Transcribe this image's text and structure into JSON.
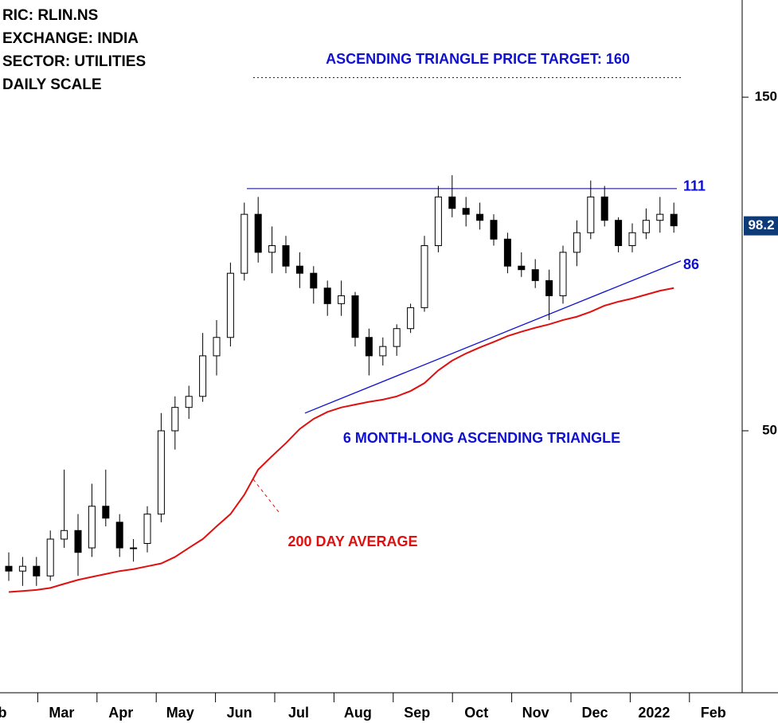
{
  "chart_data": {
    "type": "candlestick",
    "header": [
      "RIC: RLIN.NS",
      "EXCHANGE: INDIA",
      "SECTOR: UTILITIES",
      "DAILY SCALE"
    ],
    "categories": [
      "b",
      "Mar",
      "Apr",
      "May",
      "Jun",
      "Jul",
      "Aug",
      "Sep",
      "Oct",
      "Nov",
      "Dec",
      "2022",
      "Feb"
    ],
    "open": [
      32,
      31.5,
      32,
      31,
      35,
      36,
      34,
      39,
      37,
      34,
      34.5,
      38,
      50,
      54,
      56,
      64,
      68,
      84,
      102,
      90,
      92,
      86,
      84,
      80,
      76,
      78,
      68,
      64,
      66,
      70,
      75,
      92,
      108,
      104,
      102,
      100,
      94,
      86,
      85,
      82,
      78,
      90,
      96,
      108,
      100,
      92,
      96,
      100,
      102
    ],
    "high": [
      33.5,
      33,
      33,
      36,
      44,
      38,
      42,
      44,
      38,
      35,
      39,
      53,
      56,
      58,
      69,
      72,
      87,
      106,
      108,
      98,
      95,
      90,
      86,
      82,
      82,
      79,
      70,
      68,
      71,
      76,
      95,
      112,
      116,
      108,
      106,
      102,
      96,
      90,
      88,
      85,
      92,
      100,
      114,
      112,
      101,
      99,
      104,
      108,
      106
    ],
    "low": [
      30.5,
      30,
      30,
      30.5,
      34,
      31,
      33,
      36.5,
      33,
      32.5,
      33.5,
      37,
      47,
      52,
      55,
      60,
      66,
      82,
      87,
      84,
      84,
      80,
      76,
      73,
      73,
      66,
      60,
      62,
      64,
      69,
      74,
      90,
      101,
      98,
      97,
      92,
      84,
      83,
      80,
      72,
      76,
      86,
      94,
      98,
      90,
      90,
      94,
      96,
      96
    ],
    "close": [
      31.5,
      32,
      31,
      35,
      36,
      33.5,
      39,
      37.5,
      34,
      34,
      38,
      50,
      54,
      56,
      64,
      68,
      84,
      102,
      90,
      92,
      86,
      84,
      80,
      76,
      78,
      68,
      64,
      66,
      70,
      75,
      92,
      108,
      104,
      102,
      100,
      94,
      86,
      85,
      82,
      78,
      90,
      96,
      108,
      100,
      92,
      96,
      100,
      102,
      98.2
    ],
    "ma": {
      "color": "#e01010",
      "values": [
        29.4,
        29.5,
        29.6,
        29.8,
        30.2,
        30.6,
        30.9,
        31.2,
        31.5,
        31.7,
        32,
        32.3,
        33,
        34,
        35,
        36.5,
        38,
        40.5,
        44,
        46,
        48,
        50.3,
        52,
        53.2,
        54,
        54.5,
        55,
        55.4,
        56,
        57,
        58.5,
        61,
        63,
        64.5,
        65.8,
        67,
        68.3,
        69.3,
        70.2,
        71,
        72,
        72.8,
        74,
        75.5,
        76.5,
        77.3,
        78.3,
        79.3,
        80
      ]
    },
    "ma_label": "200 DAY AVERAGE",
    "resistance": 111,
    "support": [
      53,
      87.5
    ],
    "support_label": 86,
    "target": 160,
    "target_label": "ASCENDING TRIANGLE PRICE TARGET: 160",
    "pattern_label": "6 MONTH-LONG ASCENDING TRIANGLE",
    "last_price": 98.2,
    "log_scale": true,
    "ylim": [
      21.1,
      206.6
    ],
    "yticks": [
      50,
      150
    ]
  }
}
